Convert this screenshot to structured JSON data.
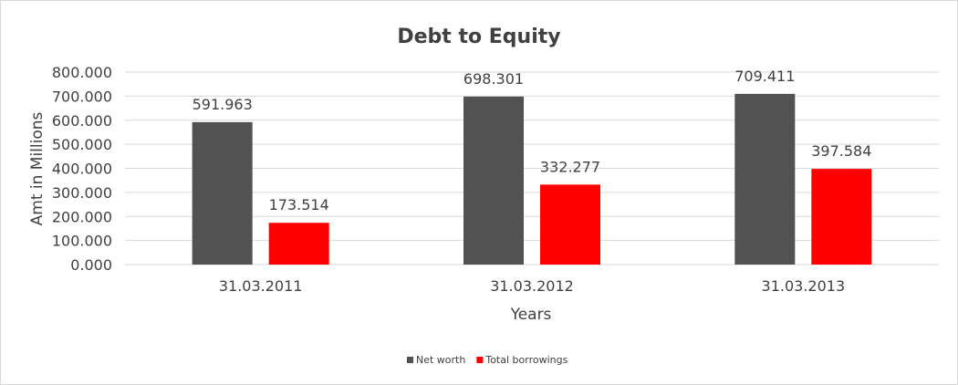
{
  "chart_data": {
    "type": "bar",
    "title": "Debt to Equity",
    "xlabel": "Years",
    "ylabel": "Amt in Millions",
    "categories": [
      "31.03.2011",
      "31.03.2012",
      "31.03.2013"
    ],
    "series": [
      {
        "name": "Net worth",
        "color": "#525252",
        "values": [
          591.963,
          698.301,
          709.411
        ]
      },
      {
        "name": "Total borrowings",
        "color": "#ff0000",
        "values": [
          173.514,
          332.277,
          397.584
        ]
      }
    ],
    "ylim": [
      0,
      800
    ],
    "yticks": [
      "0.000",
      "100.000",
      "200.000",
      "300.000",
      "400.000",
      "500.000",
      "600.000",
      "700.000",
      "800.000"
    ],
    "grid": true,
    "legend": "bottom"
  }
}
